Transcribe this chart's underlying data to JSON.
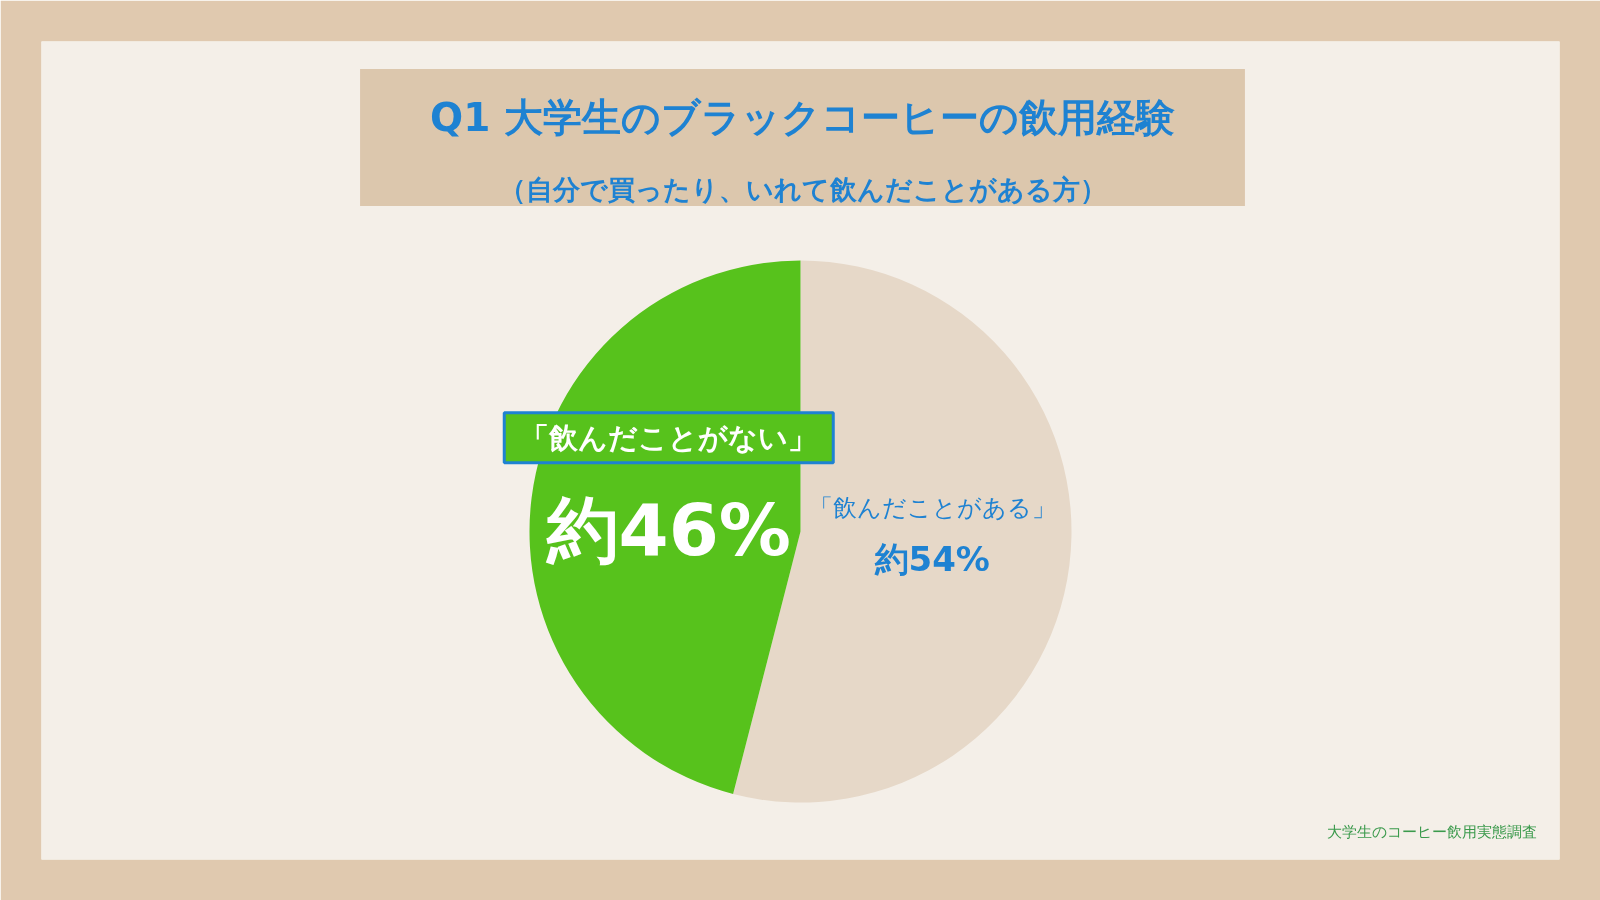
{
  "chart_data": {
    "type": "pie",
    "title": "Q1 大学生のブラックコーヒーの飲用経験",
    "subtitle": "（自分で買ったり、いれて飲んだことがある方）",
    "categories": [
      "「飲んだことがある」",
      "「飲んだことがない」"
    ],
    "values": [
      54,
      46
    ],
    "colors": [
      "#e6d8c8",
      "#57c21c"
    ],
    "value_labels": [
      "約54%",
      "約46%"
    ],
    "annotations": [
      "大学生のコーヒー飲用実態調査"
    ]
  }
}
